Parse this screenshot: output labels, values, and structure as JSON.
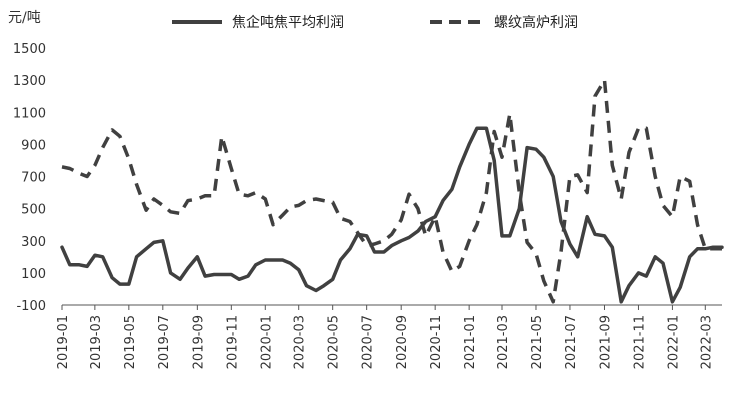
{
  "chart_data": {
    "type": "line",
    "ylabel": "元/吨",
    "ylim": [
      -100,
      1500
    ],
    "yticks": [
      -100,
      100,
      300,
      500,
      700,
      900,
      1100,
      1300,
      1500
    ],
    "grid": false,
    "legend": "top",
    "x_tick_labels": [
      "2019-01",
      "2019-03",
      "2019-05",
      "2019-07",
      "2019-09",
      "2019-11",
      "2020-01",
      "2020-03",
      "2020-05",
      "2020-07",
      "2020-09",
      "2020-11",
      "2021-01",
      "2021-03",
      "2021-05",
      "2021-07",
      "2021-09",
      "2021-11",
      "2022-01",
      "2022-03"
    ],
    "x": [
      "2019-01-01",
      "2019-01-15",
      "2019-02-01",
      "2019-02-15",
      "2019-03-01",
      "2019-03-15",
      "2019-04-01",
      "2019-04-15",
      "2019-05-01",
      "2019-05-15",
      "2019-06-01",
      "2019-06-15",
      "2019-07-01",
      "2019-07-15",
      "2019-08-01",
      "2019-08-15",
      "2019-09-01",
      "2019-09-15",
      "2019-10-01",
      "2019-10-15",
      "2019-11-01",
      "2019-11-15",
      "2019-12-01",
      "2019-12-15",
      "2020-01-01",
      "2020-01-15",
      "2020-02-01",
      "2020-02-15",
      "2020-03-01",
      "2020-03-15",
      "2020-04-01",
      "2020-04-15",
      "2020-05-01",
      "2020-05-15",
      "2020-06-01",
      "2020-06-15",
      "2020-07-01",
      "2020-07-15",
      "2020-08-01",
      "2020-08-15",
      "2020-09-01",
      "2020-09-15",
      "2020-10-01",
      "2020-10-15",
      "2020-11-01",
      "2020-11-15",
      "2020-12-01",
      "2020-12-15",
      "2021-01-01",
      "2021-01-15",
      "2021-02-01",
      "2021-02-15",
      "2021-03-01",
      "2021-03-15",
      "2021-04-01",
      "2021-04-15",
      "2021-05-01",
      "2021-05-15",
      "2021-06-01",
      "2021-06-15",
      "2021-07-01",
      "2021-07-15",
      "2021-08-01",
      "2021-08-15",
      "2021-09-01",
      "2021-09-15",
      "2021-10-01",
      "2021-10-15",
      "2021-11-01",
      "2021-11-15",
      "2021-12-01",
      "2021-12-15",
      "2022-01-01",
      "2022-01-15",
      "2022-02-01",
      "2022-02-15",
      "2022-03-01",
      "2022-03-15",
      "2022-03-31"
    ],
    "series": [
      {
        "name": "焦企吨焦平均利润",
        "style": "solid",
        "color": "#404040",
        "values": [
          260,
          150,
          150,
          140,
          210,
          200,
          70,
          30,
          30,
          200,
          250,
          290,
          300,
          100,
          60,
          130,
          200,
          80,
          90,
          90,
          90,
          60,
          80,
          150,
          180,
          180,
          180,
          160,
          120,
          20,
          -10,
          20,
          60,
          180,
          250,
          340,
          330,
          230,
          230,
          270,
          300,
          320,
          360,
          420,
          450,
          550,
          620,
          760,
          900,
          1000,
          1000,
          800,
          330,
          330,
          500,
          880,
          870,
          820,
          700,
          420,
          280,
          200,
          450,
          340,
          330,
          260,
          -80,
          20,
          100,
          80,
          200,
          160,
          -80,
          10,
          200,
          250,
          250,
          260,
          260
        ]
      },
      {
        "name": "螺纹高炉利润",
        "style": "dashed",
        "color": "#404040",
        "values": [
          760,
          750,
          720,
          700,
          770,
          880,
          990,
          950,
          810,
          650,
          490,
          560,
          520,
          480,
          470,
          550,
          560,
          580,
          580,
          950,
          750,
          590,
          580,
          600,
          560,
          400,
          460,
          510,
          520,
          550,
          560,
          550,
          540,
          440,
          420,
          350,
          270,
          280,
          300,
          340,
          430,
          590,
          500,
          330,
          450,
          230,
          110,
          140,
          300,
          400,
          600,
          980,
          820,
          1090,
          600,
          290,
          220,
          50,
          -80,
          230,
          700,
          710,
          600,
          1200,
          1300,
          770,
          560,
          850,
          1000,
          1000,
          700,
          520,
          450,
          700,
          670,
          400,
          250,
          250,
          250
        ]
      }
    ]
  }
}
